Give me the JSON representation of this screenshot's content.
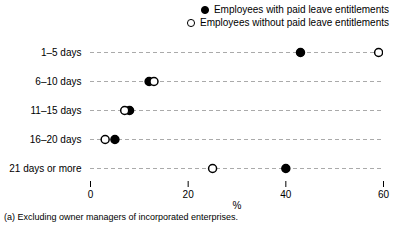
{
  "chart_data": {
    "type": "dot",
    "categories": [
      "1–5 days",
      "6–10 days",
      "11–15 days",
      "16–20 days",
      "21 days or more"
    ],
    "series": [
      {
        "name": "Employees with paid leave entitlements",
        "color": "black",
        "marker": "o",
        "values": [
          43,
          12,
          8,
          5,
          40
        ]
      },
      {
        "name": "Employees without paid leave entitlements",
        "color": "white",
        "marker": "o",
        "values": [
          59,
          13,
          7,
          3,
          25
        ]
      }
    ],
    "orientation": "horizontal",
    "xlabel": "%",
    "xlim": [
      0,
      60
    ],
    "xticks": [
      0,
      20,
      40,
      60
    ],
    "grid": "y",
    "legend": "upper right",
    "footnote": "(a) Excluding owner managers of incorporated enterprises."
  }
}
